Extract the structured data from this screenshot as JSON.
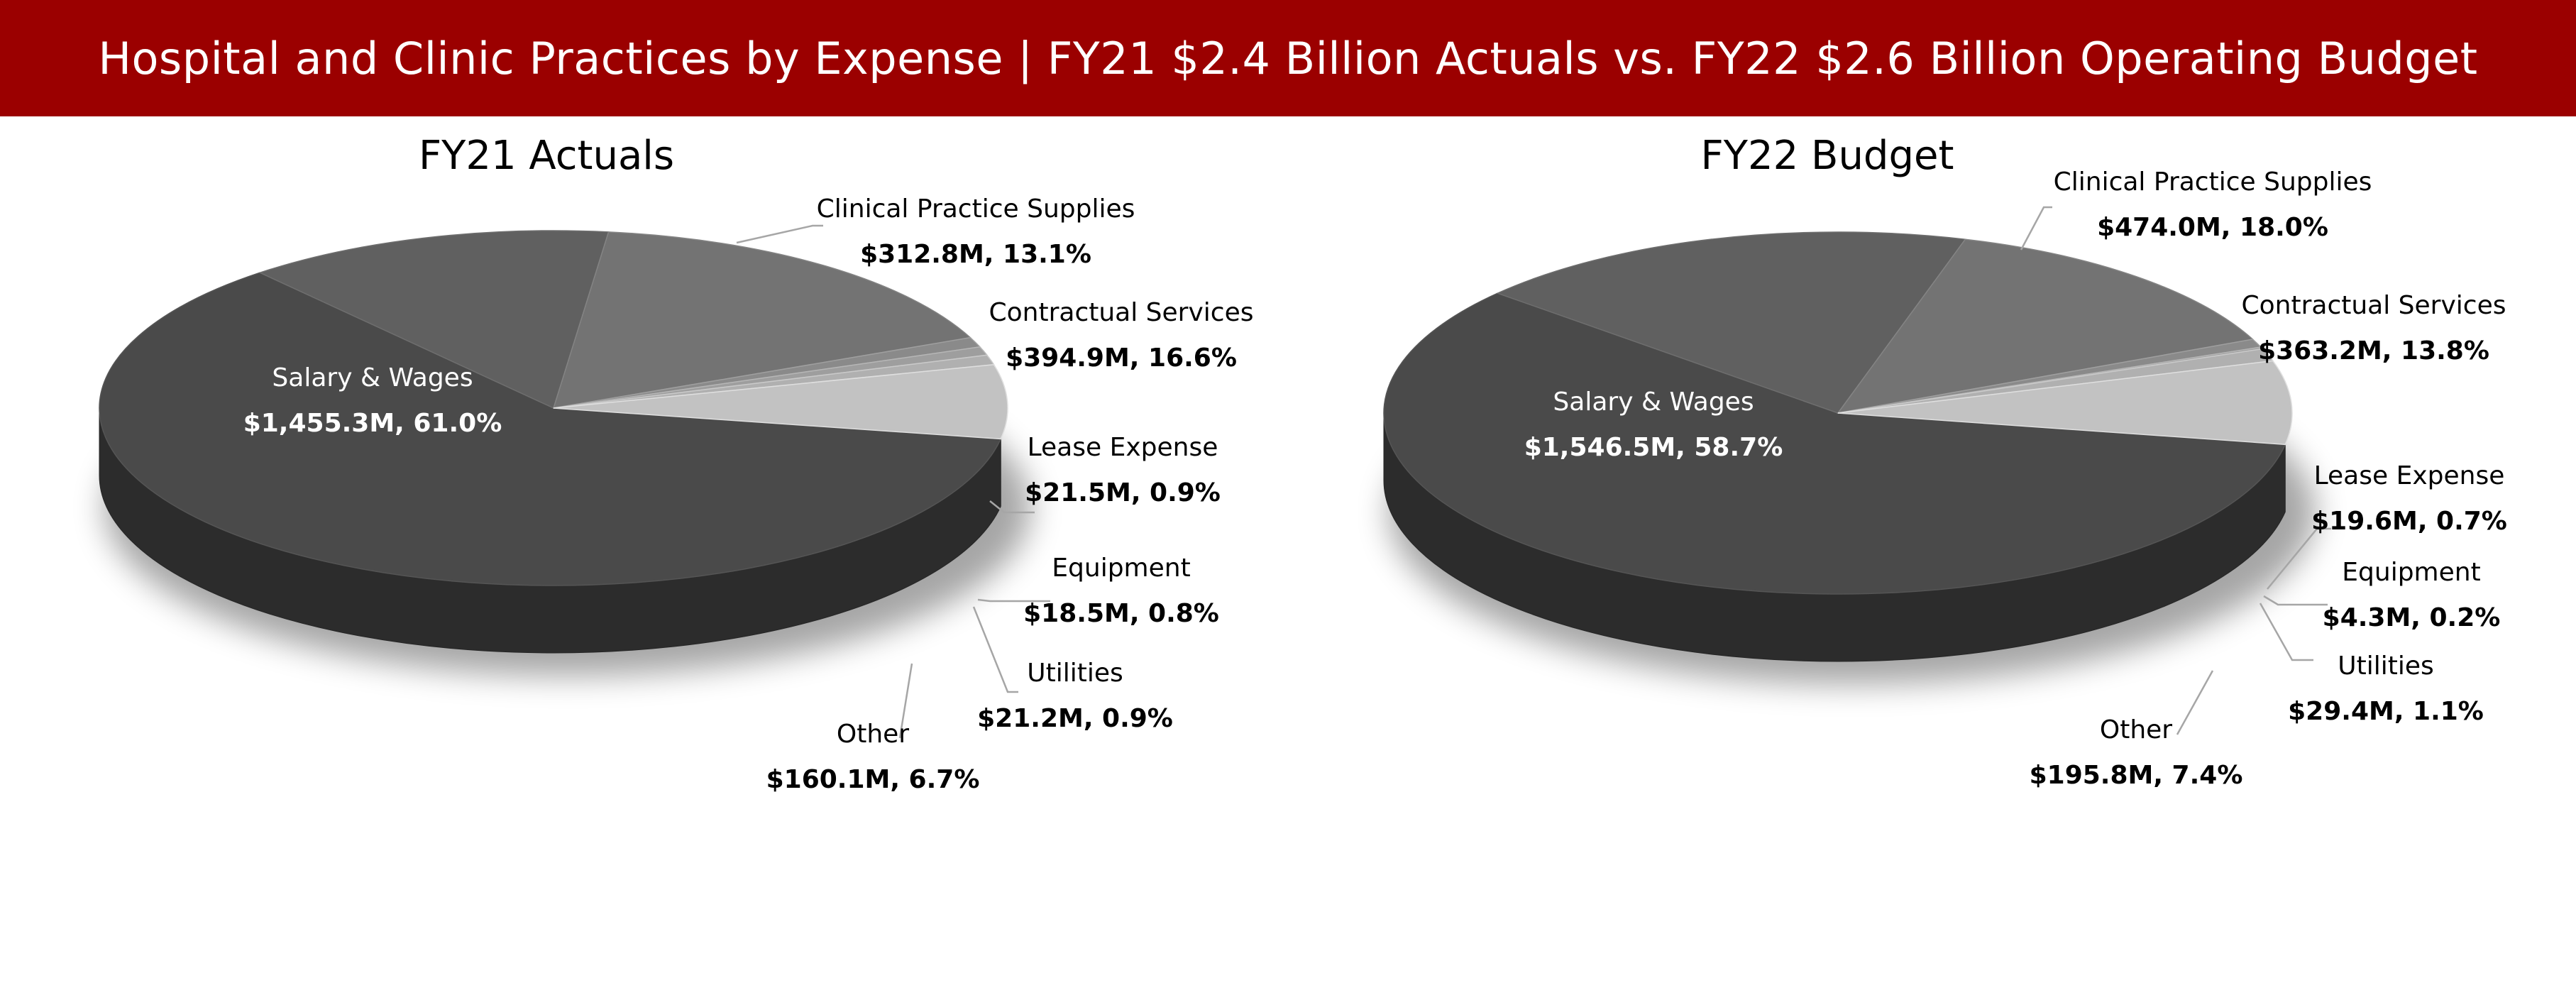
{
  "banner": {
    "title": "Hospital and Clinic Practices by Expense | FY21 $2.4 Billion Actuals vs. FY22 $2.6 Billion Operating Budget",
    "background_color": "#9b0000",
    "text_color": "#ffffff"
  },
  "chart_data": [
    {
      "type": "pie",
      "title": "FY21 Actuals",
      "units": "$M",
      "slices": [
        {
          "name": "Salary & Wages",
          "value": 1455.3,
          "percent": 61.0,
          "value_label": "$1,455.3M, 61.0%",
          "color": "#4a4a4a"
        },
        {
          "name": "Clinical Practice Supplies",
          "value": 312.8,
          "percent": 13.1,
          "value_label": "$312.8M, 13.1%",
          "color": "#606060"
        },
        {
          "name": "Contractual Services",
          "value": 394.9,
          "percent": 16.6,
          "value_label": "$394.9M, 16.6%",
          "color": "#737373"
        },
        {
          "name": "Lease Expense",
          "value": 21.5,
          "percent": 0.9,
          "value_label": "$21.5M, 0.9%",
          "color": "#8a8a8a"
        },
        {
          "name": "Equipment",
          "value": 18.5,
          "percent": 0.8,
          "value_label": "$18.5M, 0.8%",
          "color": "#9e9e9e"
        },
        {
          "name": "Utilities",
          "value": 21.2,
          "percent": 0.9,
          "value_label": "$21.2M, 0.9%",
          "color": "#b0b0b0"
        },
        {
          "name": "Other",
          "value": 160.1,
          "percent": 6.7,
          "value_label": "$160.1M, 6.7%",
          "color": "#c2c2c2"
        }
      ]
    },
    {
      "type": "pie",
      "title": "FY22 Budget",
      "units": "$M",
      "slices": [
        {
          "name": "Salary & Wages",
          "value": 1546.5,
          "percent": 58.7,
          "value_label": "$1,546.5M, 58.7%",
          "color": "#4a4a4a"
        },
        {
          "name": "Clinical Practice Supplies",
          "value": 474.0,
          "percent": 18.0,
          "value_label": "$474.0M, 18.0%",
          "color": "#606060"
        },
        {
          "name": "Contractual Services",
          "value": 363.2,
          "percent": 13.8,
          "value_label": "$363.2M, 13.8%",
          "color": "#737373"
        },
        {
          "name": "Lease Expense",
          "value": 19.6,
          "percent": 0.7,
          "value_label": "$19.6M, 0.7%",
          "color": "#8a8a8a"
        },
        {
          "name": "Equipment",
          "value": 4.3,
          "percent": 0.2,
          "value_label": "$4.3M, 0.2%",
          "color": "#9e9e9e"
        },
        {
          "name": "Utilities",
          "value": 29.4,
          "percent": 1.1,
          "value_label": "$29.4M, 1.1%",
          "color": "#b0b0b0"
        },
        {
          "name": "Other",
          "value": 195.8,
          "percent": 7.4,
          "value_label": "$195.8M, 7.4%",
          "color": "#c2c2c2"
        }
      ]
    }
  ]
}
